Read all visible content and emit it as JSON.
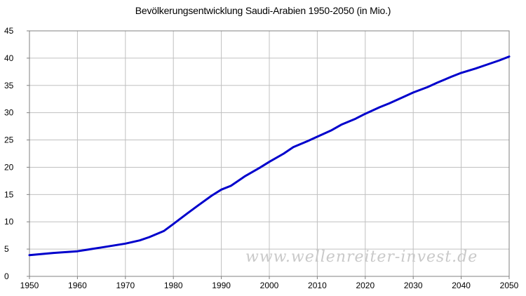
{
  "chart_data": {
    "type": "line",
    "title": "Bevölkerungsentwicklung Saudi-Arabien 1950-2050 (in Mio.)",
    "xlabel": "",
    "ylabel": "",
    "xlim": [
      1950,
      2050
    ],
    "ylim": [
      0,
      45
    ],
    "x_ticks": [
      1950,
      1960,
      1970,
      1980,
      1990,
      2000,
      2010,
      2020,
      2030,
      2040,
      2050
    ],
    "y_ticks": [
      0,
      5,
      10,
      15,
      20,
      25,
      30,
      35,
      40,
      45
    ],
    "grid": true,
    "legend": "none",
    "series": [
      {
        "color": "#0000cc",
        "x": [
          1950,
          1955,
          1960,
          1965,
          1970,
          1973,
          1975,
          1978,
          1980,
          1983,
          1985,
          1988,
          1990,
          1992,
          1995,
          1998,
          2000,
          2003,
          2005,
          2008,
          2010,
          2013,
          2015,
          2018,
          2020,
          2023,
          2025,
          2028,
          2030,
          2033,
          2035,
          2038,
          2040,
          2043,
          2045,
          2048,
          2050
        ],
        "values": [
          3.9,
          4.3,
          4.6,
          5.3,
          6.0,
          6.6,
          7.2,
          8.3,
          9.6,
          11.6,
          12.9,
          14.8,
          15.9,
          16.6,
          18.4,
          19.9,
          21.0,
          22.5,
          23.7,
          24.8,
          25.6,
          26.8,
          27.8,
          28.9,
          29.8,
          31.0,
          31.7,
          32.9,
          33.7,
          34.7,
          35.5,
          36.6,
          37.3,
          38.1,
          38.7,
          39.6,
          40.3
        ]
      }
    ]
  },
  "watermark": "www.wellenreiter-invest.de"
}
